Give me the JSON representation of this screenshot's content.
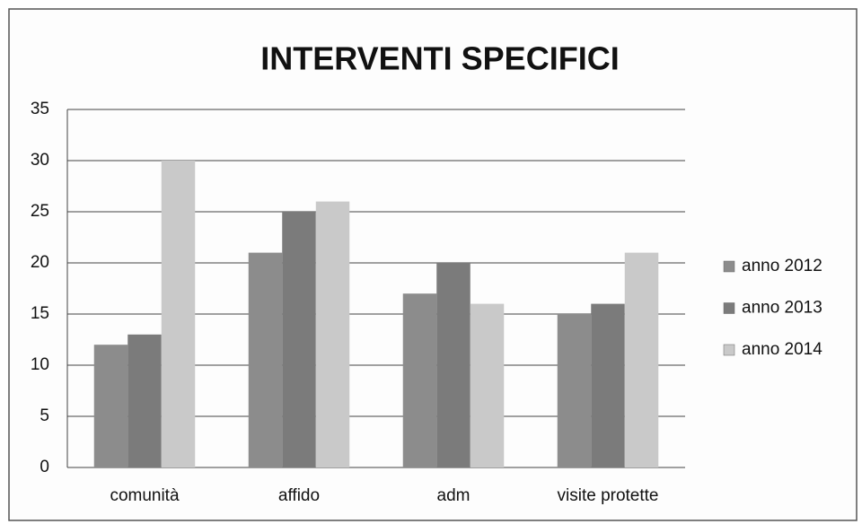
{
  "chart_data": {
    "type": "bar",
    "title": "INTERVENTI SPECIFICI",
    "categories": [
      "comunità",
      "affido",
      "adm",
      "visite protette"
    ],
    "series": [
      {
        "name": "anno 2012",
        "color": "#8c8c8c",
        "values": [
          12,
          21,
          17,
          15
        ]
      },
      {
        "name": "anno 2013",
        "color": "#7b7b7b",
        "values": [
          13,
          25,
          20,
          16
        ]
      },
      {
        "name": "anno 2014",
        "color": "#c9c9c9",
        "values": [
          30,
          26,
          16,
          21
        ]
      }
    ],
    "ylim": [
      0,
      35
    ],
    "yticks": [
      0,
      5,
      10,
      15,
      20,
      25,
      30,
      35
    ],
    "grid": true,
    "legend": "right"
  }
}
